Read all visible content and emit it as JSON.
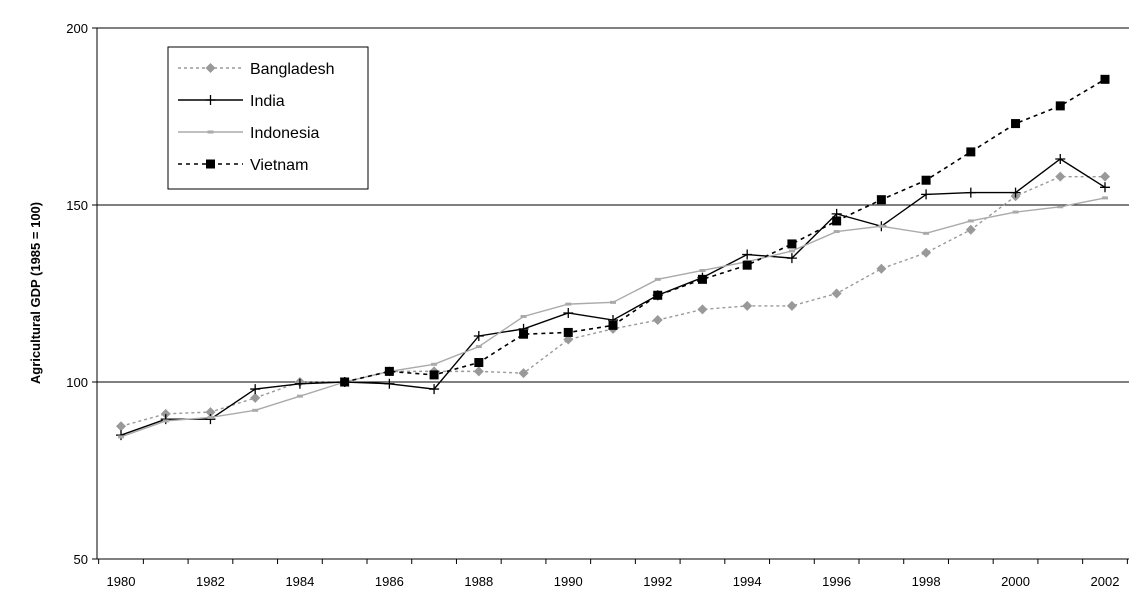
{
  "chart_data": {
    "type": "line",
    "title": "",
    "xlabel": "",
    "ylabel": "Agricultural GDP (1985 = 100)",
    "xlim": [
      1980,
      2002
    ],
    "ylim": [
      50,
      200
    ],
    "x_ticks": [
      1980,
      1982,
      1984,
      1986,
      1988,
      1990,
      1992,
      1994,
      1996,
      1998,
      2000,
      2002
    ],
    "x_tick_labels": [
      "1980",
      "1982",
      "1984",
      "1986",
      "1988",
      "1990",
      "1992",
      "1994",
      "1996",
      "1998",
      "2000",
      "2002"
    ],
    "y_ticks": [
      50,
      100,
      150,
      200
    ],
    "y_tick_labels": [
      "50",
      "100",
      "150",
      "200"
    ],
    "grid": "horizontal",
    "legend_position": "top-left",
    "x": [
      1980,
      1981,
      1982,
      1983,
      1984,
      1985,
      1986,
      1987,
      1988,
      1989,
      1990,
      1991,
      1992,
      1993,
      1994,
      1995,
      1996,
      1997,
      1998,
      1999,
      2000,
      2001,
      2002
    ],
    "series": [
      {
        "name": "Bangladesh",
        "color": "#999999",
        "line": "dotted",
        "marker": "diamond",
        "values": [
          87.5,
          91,
          91.5,
          95.5,
          100,
          100,
          103,
          103,
          103,
          102.5,
          112,
          115,
          117.5,
          120.5,
          121.5,
          121.5,
          125,
          132,
          136.5,
          143,
          152.5,
          158,
          158
        ]
      },
      {
        "name": "India",
        "color": "#000000",
        "line": "solid",
        "marker": "plus",
        "values": [
          85,
          89.5,
          89.5,
          98,
          99.5,
          100,
          99.5,
          98,
          113,
          115,
          119.5,
          117.5,
          124.5,
          129.5,
          136,
          135,
          147.5,
          144,
          153,
          153.5,
          153.5,
          163,
          155
        ]
      },
      {
        "name": "Indonesia",
        "color": "#aaaaaa",
        "line": "solid",
        "marker": "dash",
        "values": [
          84.5,
          89,
          90,
          92,
          96,
          100,
          103,
          105,
          110,
          118.5,
          122,
          122.5,
          129,
          131.5,
          134,
          137,
          142.5,
          144,
          142,
          145.5,
          148,
          149.5,
          152
        ]
      },
      {
        "name": "Vietnam",
        "color": "#000000",
        "line": "dashed",
        "marker": "square",
        "values": [
          null,
          null,
          null,
          null,
          null,
          100,
          103,
          102,
          105.5,
          113.5,
          114,
          116,
          124.5,
          129,
          133,
          139,
          145.5,
          151.5,
          157,
          165,
          173,
          178,
          185.5
        ]
      }
    ]
  }
}
